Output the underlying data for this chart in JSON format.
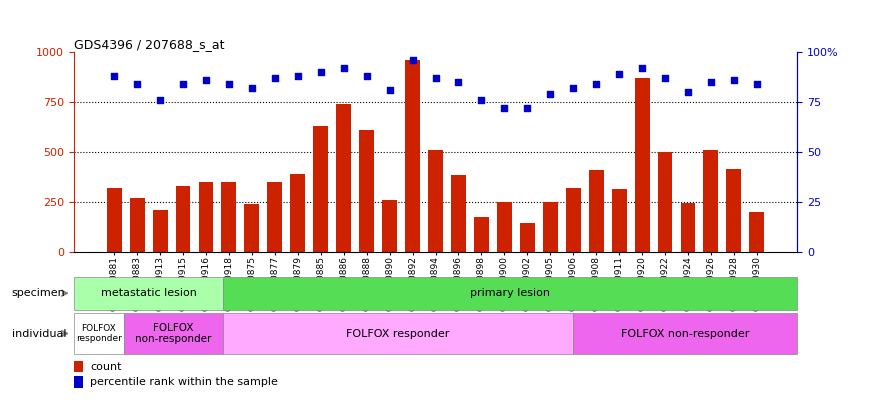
{
  "title": "GDS4396 / 207688_s_at",
  "samples": [
    "GSM710881",
    "GSM710883",
    "GSM710913",
    "GSM710915",
    "GSM710916",
    "GSM710918",
    "GSM710875",
    "GSM710877",
    "GSM710879",
    "GSM710885",
    "GSM710886",
    "GSM710888",
    "GSM710890",
    "GSM710892",
    "GSM710894",
    "GSM710896",
    "GSM710898",
    "GSM710900",
    "GSM710902",
    "GSM710905",
    "GSM710906",
    "GSM710908",
    "GSM710911",
    "GSM710920",
    "GSM710922",
    "GSM710924",
    "GSM710926",
    "GSM710928",
    "GSM710930"
  ],
  "counts": [
    320,
    270,
    210,
    330,
    350,
    350,
    240,
    350,
    390,
    630,
    740,
    610,
    260,
    960,
    510,
    385,
    175,
    250,
    145,
    250,
    320,
    410,
    315,
    870,
    500,
    245,
    510,
    415,
    200
  ],
  "percentile": [
    88,
    84,
    76,
    84,
    86,
    84,
    82,
    87,
    88,
    90,
    92,
    88,
    81,
    96,
    87,
    85,
    76,
    72,
    72,
    79,
    82,
    84,
    89,
    92,
    87,
    80,
    85,
    86,
    84
  ],
  "bar_color": "#cc2200",
  "dot_color": "#0000cc",
  "left_ylim": [
    0,
    1000
  ],
  "right_ylim": [
    0,
    100
  ],
  "left_yticks": [
    0,
    250,
    500,
    750,
    1000
  ],
  "right_yticks": [
    0,
    25,
    50,
    75,
    100
  ],
  "hline_values": [
    250,
    500,
    750
  ],
  "specimen_groups": [
    {
      "label": "metastatic lesion",
      "start": 0,
      "end": 6,
      "color": "#aaffaa"
    },
    {
      "label": "primary lesion",
      "start": 6,
      "end": 29,
      "color": "#55dd55"
    }
  ],
  "individual_groups": [
    {
      "label": "FOLFOX\nresponder",
      "start": 0,
      "end": 2,
      "color": "#ffffff",
      "fontsize": 6.5
    },
    {
      "label": "FOLFOX\nnon-responder",
      "start": 2,
      "end": 6,
      "color": "#ee66ee",
      "fontsize": 7.5
    },
    {
      "label": "FOLFOX responder",
      "start": 6,
      "end": 20,
      "color": "#ffaaff",
      "fontsize": 8
    },
    {
      "label": "FOLFOX non-responder",
      "start": 20,
      "end": 29,
      "color": "#ee66ee",
      "fontsize": 8
    }
  ],
  "legend_count_label": "count",
  "legend_percentile_label": "percentile rank within the sample",
  "specimen_label": "specimen",
  "individual_label": "individual"
}
